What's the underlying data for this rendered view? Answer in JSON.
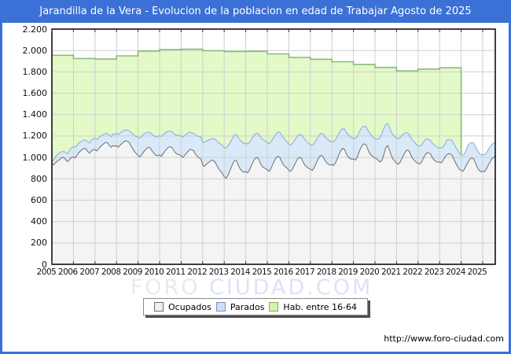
{
  "window": {
    "title": "Jarandilla de la Vera - Evolucion de la poblacion en edad de Trabajar Agosto de 2025"
  },
  "footer": {
    "url": "http://www.foro-ciudad.com"
  },
  "watermark": {
    "word1": "FORO",
    "word2": "CIUDAD.COM"
  },
  "colors": {
    "frame_blue": "#3B70D6",
    "title_text": "#ffffff",
    "plot_border": "#000000",
    "grid": "#cfcfcf",
    "ocupados_line": "#6e6e6e",
    "ocupados_fill": "#f4f4f4",
    "parados_line": "#92b4e6",
    "parados_fill": "#d9e9f8",
    "hab_line": "#86bb7d",
    "hab_fill": "#e4f9c8",
    "watermark_word1": "#e9e9e9",
    "watermark_word2": "#dde2f7"
  },
  "legend": {
    "items": [
      {
        "label": "Ocupados",
        "fill": "#f0f0f0",
        "border": "#6e6e6e"
      },
      {
        "label": "Parados",
        "fill": "#c9e0f6",
        "border": "#7a94bd"
      },
      {
        "label": "Hab. entre 16-64",
        "fill": "#d6f2ab",
        "border": "#86a95e"
      }
    ]
  },
  "chart_data": {
    "type": "area",
    "title": "Jarandilla de la Vera - Evolucion de la poblacion en edad de Trabajar Agosto de 2025",
    "xlabel": "",
    "ylabel": "",
    "ylim": [
      0,
      2200
    ],
    "grid": true,
    "legend_position": "bottom",
    "x_ticks": [
      2005,
      2006,
      2007,
      2008,
      2009,
      2010,
      2011,
      2012,
      2013,
      2014,
      2015,
      2016,
      2017,
      2018,
      2019,
      2020,
      2021,
      2022,
      2023,
      2024,
      2025
    ],
    "y_tick_labels": [
      "0",
      "200",
      "400",
      "600",
      "800",
      "1.000",
      "1.200",
      "1.400",
      "1.600",
      "1.800",
      "2.000",
      "2.200"
    ],
    "series": [
      {
        "name": "Ocupados",
        "resolution": "monthly",
        "start": "2005-01",
        "end": "2025-08",
        "values": [
          945,
          930,
          950,
          965,
          975,
          990,
          1000,
          995,
          970,
          960,
          985,
          1000,
          1005,
          995,
          1020,
          1045,
          1060,
          1075,
          1085,
          1080,
          1055,
          1040,
          1060,
          1070,
          1075,
          1060,
          1080,
          1100,
          1115,
          1130,
          1140,
          1135,
          1110,
          1095,
          1110,
          1105,
          1110,
          1095,
          1115,
          1130,
          1145,
          1155,
          1150,
          1140,
          1110,
          1080,
          1055,
          1035,
          1020,
          1005,
          1025,
          1050,
          1070,
          1085,
          1095,
          1085,
          1055,
          1035,
          1020,
          1015,
          1025,
          1010,
          1035,
          1060,
          1080,
          1095,
          1100,
          1090,
          1060,
          1040,
          1030,
          1025,
          1015,
          1000,
          1020,
          1040,
          1060,
          1075,
          1070,
          1060,
          1030,
          1010,
          995,
          985,
          930,
          915,
          935,
          950,
          960,
          975,
          970,
          955,
          920,
          890,
          870,
          850,
          820,
          805,
          830,
          870,
          910,
          950,
          975,
          965,
          920,
          890,
          870,
          860,
          870,
          855,
          880,
          920,
          955,
          985,
          1000,
          990,
          950,
          920,
          905,
          895,
          885,
          870,
          895,
          935,
          970,
          1000,
          1010,
          1000,
          960,
          930,
          915,
          900,
          880,
          868,
          890,
          925,
          958,
          988,
          1000,
          992,
          955,
          925,
          910,
          898,
          890,
          878,
          900,
          938,
          972,
          1005,
          1020,
          1010,
          975,
          950,
          938,
          928,
          935,
          925,
          950,
          990,
          1030,
          1065,
          1085,
          1075,
          1035,
          1005,
          990,
          982,
          985,
          975,
          1000,
          1045,
          1085,
          1115,
          1128,
          1118,
          1075,
          1040,
          1020,
          1005,
          995,
          985,
          970,
          958,
          975,
          1030,
          1090,
          1110,
          1070,
          1020,
          985,
          965,
          945,
          935,
          955,
          990,
          1025,
          1055,
          1070,
          1060,
          1020,
          990,
          970,
          955,
          945,
          938,
          960,
          995,
          1025,
          1045,
          1040,
          1030,
          995,
          975,
          962,
          955,
          958,
          950,
          972,
          1005,
          1025,
          1035,
          1030,
          1018,
          980,
          945,
          915,
          890,
          878,
          870,
          895,
          930,
          960,
          985,
          995,
          985,
          945,
          905,
          880,
          865,
          872,
          865,
          890,
          925,
          955,
          985,
          1000,
          1010
        ]
      },
      {
        "name": "Parados",
        "stacking": "stacked_on_Ocupados",
        "resolution": "monthly",
        "start": "2005-01",
        "end": "2025-08",
        "values": [
          30,
          45,
          55,
          60,
          65,
          60,
          55,
          58,
          70,
          80,
          85,
          90,
          95,
          100,
          95,
          90,
          85,
          80,
          78,
          80,
          90,
          95,
          100,
          105,
          105,
          108,
          102,
          98,
          92,
          88,
          85,
          88,
          95,
          100,
          108,
          112,
          115,
          120,
          115,
          110,
          105,
          100,
          105,
          110,
          125,
          140,
          150,
          160,
          170,
          178,
          172,
          165,
          155,
          148,
          142,
          145,
          155,
          165,
          172,
          178,
          180,
          185,
          178,
          168,
          158,
          150,
          145,
          150,
          160,
          170,
          178,
          182,
          185,
          192,
          185,
          178,
          170,
          162,
          158,
          165,
          178,
          190,
          200,
          208,
          215,
          225,
          218,
          210,
          205,
          198,
          205,
          215,
          230,
          245,
          255,
          262,
          270,
          285,
          275,
          260,
          248,
          240,
          238,
          245,
          258,
          268,
          272,
          268,
          262,
          270,
          260,
          248,
          238,
          230,
          226,
          232,
          245,
          255,
          260,
          256,
          252,
          260,
          250,
          238,
          228,
          222,
          228,
          235,
          248,
          255,
          250,
          245,
          242,
          250,
          240,
          230,
          222,
          215,
          214,
          220,
          232,
          240,
          238,
          232,
          230,
          236,
          228,
          218,
          210,
          205,
          206,
          212,
          222,
          228,
          225,
          220,
          216,
          222,
          214,
          205,
          196,
          188,
          185,
          190,
          200,
          208,
          206,
          200,
          196,
          202,
          194,
          185,
          176,
          168,
          165,
          170,
          180,
          188,
          186,
          182,
          180,
          185,
          205,
          235,
          255,
          245,
          220,
          205,
          210,
          220,
          228,
          232,
          235,
          240,
          230,
          215,
          195,
          175,
          160,
          155,
          162,
          170,
          172,
          168,
          162,
          168,
          160,
          150,
          140,
          130,
          125,
          128,
          136,
          142,
          140,
          136,
          132,
          138,
          130,
          122,
          138,
          130,
          135,
          140,
          146,
          150,
          152,
          148,
          145,
          150,
          142,
          150,
          155,
          148,
          145,
          148,
          152,
          158,
          162,
          158,
          155,
          160,
          152,
          145,
          140,
          135,
          132,
          130
        ]
      },
      {
        "name": "Hab. entre 16-64",
        "resolution": "yearly_steps",
        "ends_at": 2024.0,
        "years": [
          2005,
          2006,
          2007,
          2008,
          2009,
          2010,
          2011,
          2012,
          2013,
          2014,
          2015,
          2016,
          2017,
          2018,
          2019,
          2020,
          2021,
          2022,
          2023
        ],
        "values": [
          1955,
          1925,
          1920,
          1950,
          1995,
          2008,
          2012,
          1998,
          1990,
          1992,
          1968,
          1935,
          1918,
          1895,
          1870,
          1842,
          1810,
          1826,
          1838
        ]
      }
    ]
  }
}
